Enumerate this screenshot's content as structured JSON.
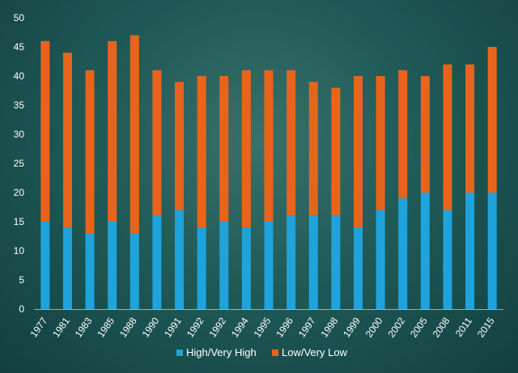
{
  "chart_data": {
    "type": "bar",
    "stacked": true,
    "categories": [
      "1977",
      "1981",
      "1983",
      "1985",
      "1988",
      "1990",
      "1991",
      "1992",
      "1992",
      "1994",
      "1995",
      "1996",
      "1997",
      "1998",
      "1999",
      "2000",
      "2002",
      "2005",
      "2008",
      "2011",
      "2015"
    ],
    "series": [
      {
        "name": "High/Very High",
        "color": "#1fa3dc",
        "values": [
          15,
          14,
          13,
          15,
          13,
          16,
          17,
          14,
          15,
          14,
          15,
          16,
          16,
          16,
          14,
          17,
          19,
          20,
          17,
          20,
          20
        ]
      },
      {
        "name": "Low/Very Low",
        "color": "#e8641c",
        "values": [
          31,
          30,
          28,
          31,
          34,
          25,
          22,
          26,
          25,
          27,
          26,
          25,
          23,
          22,
          26,
          23,
          22,
          20,
          25,
          22,
          25
        ]
      }
    ],
    "ylim": [
      0,
      50
    ],
    "yticks": [
      0,
      5,
      10,
      15,
      20,
      25,
      30,
      35,
      40,
      45,
      50
    ],
    "grid": false,
    "legend": "bottom"
  }
}
